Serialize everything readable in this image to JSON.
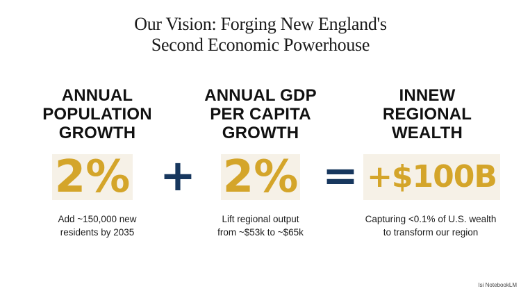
{
  "title": {
    "line1": "Our Vision: Forging New England's",
    "line2": "Second Economic Powerhouse"
  },
  "columns": [
    {
      "heading": [
        "ANNUAL",
        "POPULATION",
        "GROWTH"
      ],
      "metric": "2%",
      "description": [
        "Add ~150,000 new",
        "residents by 2035"
      ]
    },
    {
      "heading": [
        "ANNUAL GDP",
        "PER CAPITA",
        "GROWTH"
      ],
      "metric": "2%",
      "description": [
        "Lift regional output",
        "from ~$53k to ~$65k"
      ]
    },
    {
      "heading": [
        "INNEW",
        "REGIONAL",
        "WEALTH"
      ],
      "metric": "+$100B",
      "description": [
        "Capturing <0.1% of U.S. wealth",
        "to transform our region"
      ]
    }
  ],
  "operators": {
    "plus": "+",
    "equals": "="
  },
  "watermark": "Isi NotebookLM",
  "colors": {
    "metric_gold": "#d4a52a",
    "metric_background": "#f6f1e7",
    "operator_navy": "#17375e"
  }
}
